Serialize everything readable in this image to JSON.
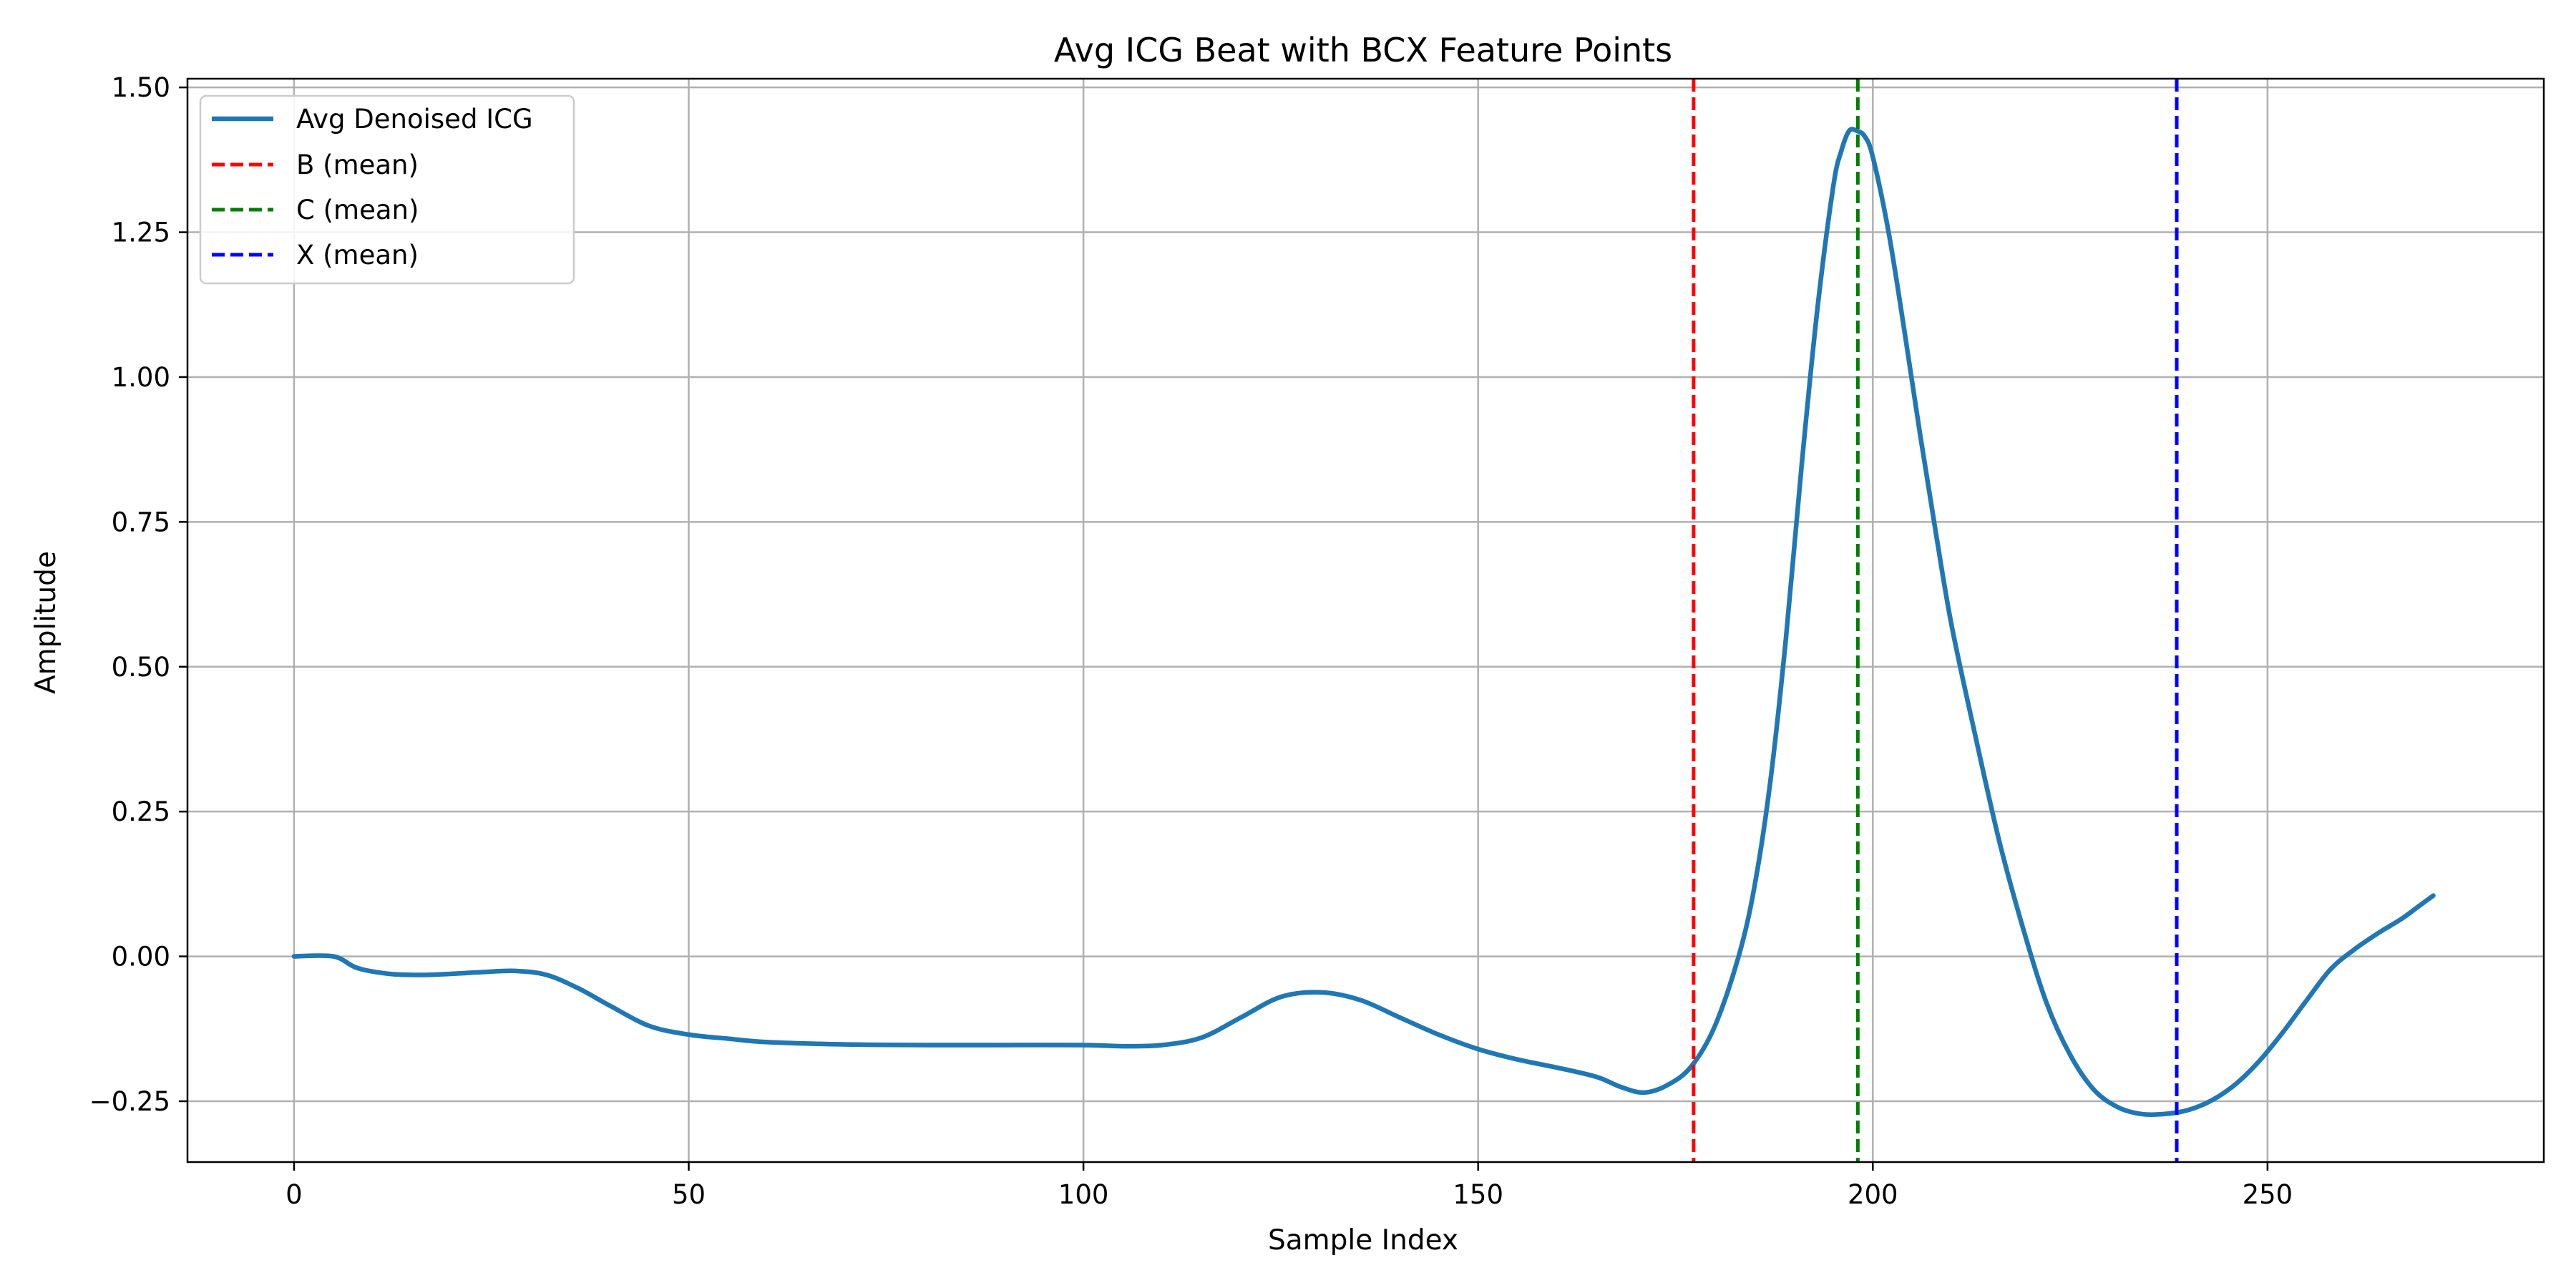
{
  "chart_data": {
    "type": "line",
    "title": "Avg ICG Beat with BCX Feature Points",
    "xlabel": "Sample Index",
    "ylabel": "Amplitude",
    "xlim": [
      -13.5,
      285
    ],
    "ylim": [
      -0.355,
      1.515
    ],
    "xticks": [
      0,
      50,
      100,
      150,
      200,
      250
    ],
    "xtick_labels": [
      "0",
      "50",
      "100",
      "150",
      "200",
      "250"
    ],
    "yticks": [
      -0.25,
      0.0,
      0.25,
      0.5,
      0.75,
      1.0,
      1.25,
      1.5
    ],
    "ytick_labels": [
      "−0.25",
      "0.00",
      "0.25",
      "0.50",
      "0.75",
      "1.00",
      "1.25",
      "1.50"
    ],
    "grid": true,
    "legend_position": "top-left",
    "series": [
      {
        "name": "Avg Denoised ICG",
        "color": "#1f77b4",
        "style": "solid",
        "x": [
          0,
          5,
          8,
          12,
          16,
          20,
          24,
          28,
          32,
          36,
          40,
          45,
          50,
          55,
          60,
          70,
          80,
          90,
          100,
          105,
          110,
          115,
          120,
          125,
          130,
          135,
          140,
          145,
          150,
          155,
          160,
          165,
          168,
          171,
          174,
          177,
          180,
          183,
          185,
          187,
          189,
          191,
          193,
          195,
          196,
          197,
          198,
          199,
          200,
          202,
          204,
          206,
          208,
          210,
          213,
          216,
          219,
          222,
          225,
          228,
          231,
          234,
          237,
          240,
          243,
          246,
          249,
          252,
          255,
          258,
          261,
          264,
          267,
          269,
          271
        ],
        "y": [
          0.0,
          0.0,
          -0.02,
          -0.03,
          -0.032,
          -0.03,
          -0.027,
          -0.025,
          -0.032,
          -0.055,
          -0.085,
          -0.12,
          -0.135,
          -0.142,
          -0.148,
          -0.152,
          -0.153,
          -0.153,
          -0.153,
          -0.155,
          -0.153,
          -0.14,
          -0.105,
          -0.07,
          -0.062,
          -0.075,
          -0.105,
          -0.135,
          -0.16,
          -0.178,
          -0.192,
          -0.208,
          -0.225,
          -0.235,
          -0.222,
          -0.19,
          -0.12,
          0.0,
          0.12,
          0.3,
          0.55,
          0.85,
          1.12,
          1.33,
          1.39,
          1.425,
          1.425,
          1.415,
          1.38,
          1.25,
          1.08,
          0.9,
          0.73,
          0.57,
          0.38,
          0.2,
          0.05,
          -0.08,
          -0.17,
          -0.23,
          -0.26,
          -0.272,
          -0.272,
          -0.265,
          -0.248,
          -0.22,
          -0.18,
          -0.13,
          -0.075,
          -0.022,
          0.012,
          0.04,
          0.065,
          0.085,
          0.105
        ]
      },
      {
        "name": "B (mean)",
        "color": "#ff0000",
        "style": "dashed",
        "x_value": 177.3
      },
      {
        "name": "C (mean)",
        "color": "#008000",
        "style": "dashed",
        "x_value": 198.1
      },
      {
        "name": "X (mean)",
        "color": "#0000ff",
        "style": "dashed",
        "x_value": 238.5
      }
    ]
  }
}
